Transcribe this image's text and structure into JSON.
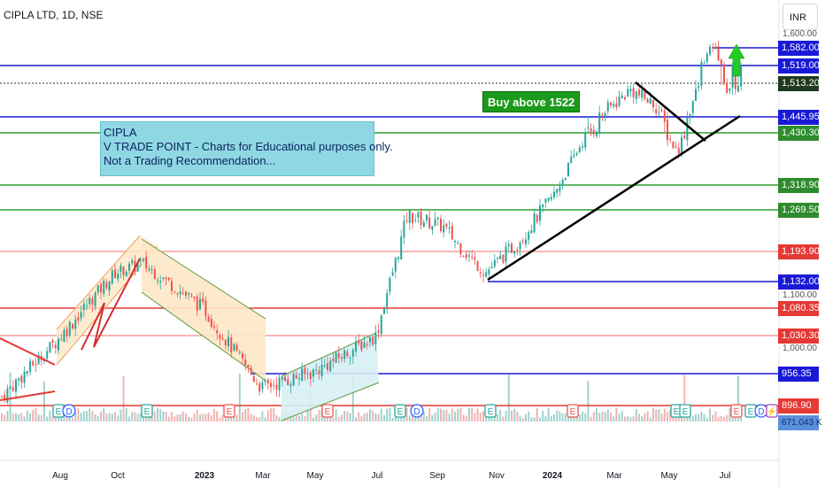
{
  "symbol": {
    "title": "CIPLA LTD, 1D, NSE"
  },
  "currency": "INR",
  "note": {
    "line1": "CIPLA",
    "line2": "V TRADE POINT - Charts for Educational purposes only.",
    "line3": "Not a Trading Recommendation..."
  },
  "buy_label": "Buy above 1522",
  "colors": {
    "up": "#26a69a",
    "down": "#ef5350",
    "blue": "#1a1ad6",
    "green": "#2e9e2e",
    "red": "#e53935"
  },
  "chart_data": {
    "type": "candlestick",
    "x_ticks": [
      "Aug",
      "Oct",
      "2023",
      "Mar",
      "May",
      "Jul",
      "Sep",
      "Nov",
      "2024",
      "Mar",
      "May",
      "Jul"
    ],
    "y_ticks": [
      "1,600.00",
      "1,100.00",
      "1,000.00"
    ],
    "y_range": [
      880,
      1620
    ],
    "price_levels": [
      {
        "label": "1,582.00",
        "value": 1582.0,
        "color": "blue",
        "span": "short"
      },
      {
        "label": "1,519.00",
        "value": 1519.0,
        "color": "blue",
        "span": "full"
      },
      {
        "label": "1,513.20",
        "value": 1513.2,
        "color": "dark",
        "span": "dotted"
      },
      {
        "label": "1,445.95",
        "value": 1445.95,
        "color": "blue",
        "span": "full"
      },
      {
        "label": "1,430.30",
        "value": 1430.3,
        "color": "green",
        "span": "full"
      },
      {
        "label": "1,318.90",
        "value": 1318.9,
        "color": "green",
        "span": "full"
      },
      {
        "label": "1,269.50",
        "value": 1269.5,
        "color": "green",
        "span": "full"
      },
      {
        "label": "1,193.90",
        "value": 1193.9,
        "color": "lightred",
        "span": "full"
      },
      {
        "label": "1,132.00",
        "value": 1132.0,
        "color": "blue",
        "span": "partial"
      },
      {
        "label": "1,080.35",
        "value": 1080.35,
        "color": "red",
        "span": "full"
      },
      {
        "label": "1,030.30",
        "value": 1030.3,
        "color": "lightred",
        "span": "full"
      },
      {
        "label": "956.35",
        "value": 956.35,
        "color": "blue",
        "span": "partial"
      },
      {
        "label": "896.90",
        "value": 896.9,
        "color": "red",
        "span": "full"
      }
    ],
    "volume_label": "671.043 K",
    "events": [
      "E",
      "D",
      "E",
      "E",
      "E",
      "E",
      "D",
      "E",
      "E",
      "E",
      "E",
      "E",
      "E",
      "D",
      "⚡",
      "E"
    ],
    "key_prices": [
      [
        "Jun 2022",
        910
      ],
      [
        "Aug 2022",
        1020
      ],
      [
        "Oct 2022",
        1150
      ],
      [
        "Nov 2022",
        1170
      ],
      [
        "Jan 2023",
        1080
      ],
      [
        "Mar 2023",
        930
      ],
      [
        "May 2023",
        960
      ],
      [
        "Jul 2023",
        1030
      ],
      [
        "Aug 2023",
        1260
      ],
      [
        "Sep 2023",
        1240
      ],
      [
        "Oct 2023",
        1150
      ],
      [
        "Nov 2023",
        1220
      ],
      [
        "Dec 2023",
        1300
      ],
      [
        "Jan 2024",
        1420
      ],
      [
        "Mar 2024",
        1500
      ],
      [
        "Apr 2024",
        1470
      ],
      [
        "May 2024",
        1390
      ],
      [
        "Jun 2024",
        1590
      ],
      [
        "Jul 2024",
        1500
      ],
      [
        "Jul 2024",
        1513
      ]
    ]
  }
}
